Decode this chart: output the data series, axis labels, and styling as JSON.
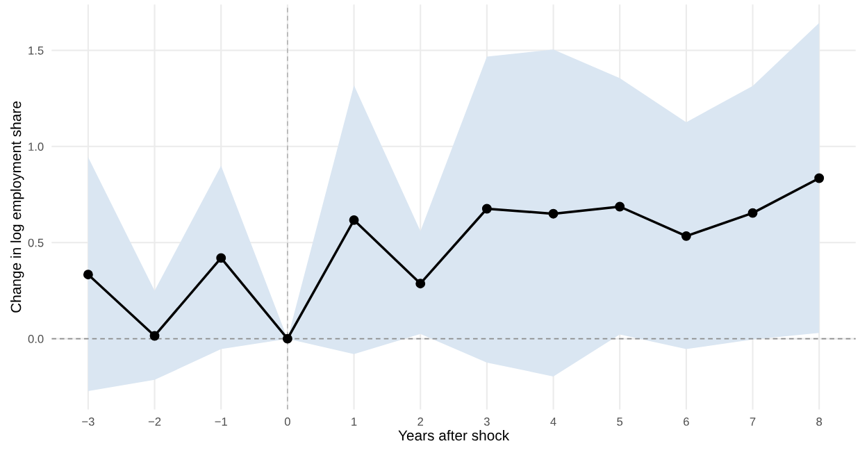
{
  "chart_data": {
    "type": "line",
    "xlabel": "Years after shock",
    "ylabel": "Change in log employment share",
    "x": [
      -3,
      -2,
      -1,
      0,
      1,
      2,
      3,
      4,
      5,
      6,
      7,
      8
    ],
    "series": [
      {
        "color": "#000000",
        "values": [
          0.334,
          0.015,
          0.42,
          0,
          0.617,
          0.287,
          0.676,
          0.65,
          0.687,
          0.534,
          0.654,
          0.835
        ],
        "upper": [
          0.944,
          0.25,
          0.9,
          0,
          1.318,
          0.56,
          1.467,
          1.504,
          1.355,
          1.126,
          1.315,
          1.642
        ],
        "lower": [
          -0.272,
          -0.214,
          -0.054,
          0,
          -0.08,
          0.025,
          -0.124,
          -0.196,
          0.022,
          -0.054,
          -0.004,
          0.03
        ]
      }
    ],
    "xlim": [
      -3.55,
      8.55
    ],
    "xticks": [
      {
        "value": -3,
        "label": "−3"
      },
      {
        "value": -2,
        "label": "−2"
      },
      {
        "value": -1,
        "label": "−1"
      },
      0,
      1,
      2,
      3,
      4,
      5,
      6,
      7,
      8
    ],
    "ylim": [
      -0.368,
      1.738
    ],
    "yticks": [
      {
        "value": 0,
        "label": "0.0"
      },
      0.5,
      {
        "value": 1,
        "label": "1.0"
      },
      1.5
    ],
    "ref_lines": [
      {
        "axis": "y",
        "value": 0,
        "color": "#8c8c8c",
        "line_style": "dashed"
      },
      {
        "axis": "x",
        "value": 0,
        "color": "#b3b3b3",
        "line_style": "dashed"
      }
    ],
    "grid": true,
    "marker": "circle",
    "line_style": "solid",
    "legend": false
  }
}
